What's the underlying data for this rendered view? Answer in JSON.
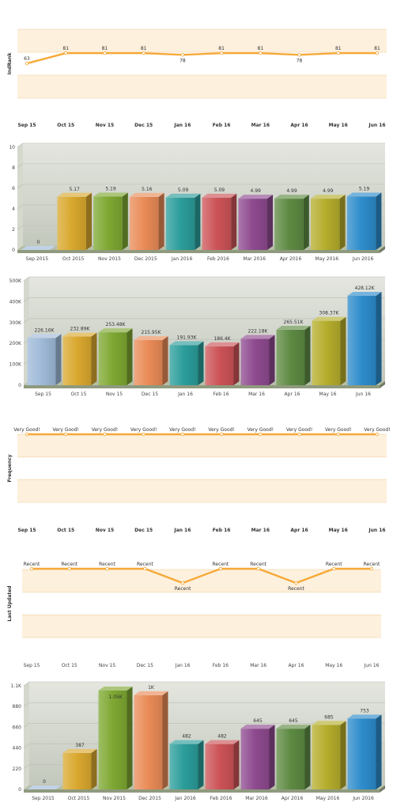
{
  "colors": {
    "band": "#fdf0dd",
    "band_line": "#f5dab4",
    "line": "#f6a938",
    "bar_bg_top": "#e4e6df",
    "bar_bg_bottom": "#c3c8bd",
    "floor": "#8f9a7e",
    "bar_palette": [
      "#9fbad8",
      "#d9a82e",
      "#7ea832",
      "#e98b57",
      "#2b9d9b",
      "#cc5357",
      "#8e4a8f",
      "#5d8a42",
      "#b5ad2c",
      "#2d8ccb"
    ]
  },
  "chart_data": [
    {
      "type": "line",
      "id": "indrank",
      "title": "",
      "ylabel": "IndRank",
      "categories": [
        "Sep 15",
        "Oct 15",
        "Nov 15",
        "Dec 15",
        "Jan 16",
        "Feb 16",
        "Mar 16",
        "Apr 16",
        "May 16",
        "Jun 16"
      ],
      "values": [
        63,
        81,
        81,
        81,
        78,
        81,
        81,
        78,
        81,
        81
      ],
      "point_labels": [
        "63",
        "81",
        "81",
        "81",
        "78",
        "81",
        "81",
        "78",
        "81",
        "81"
      ],
      "ylim": [
        30,
        120
      ]
    },
    {
      "type": "bar",
      "id": "score",
      "categories": [
        "Sep 2015",
        "Oct 2015",
        "Nov 2015",
        "Dec 2015",
        "Jan 2016",
        "Feb 2016",
        "Mar 2016",
        "Apr 2016",
        "May 2016",
        "Jun 2016"
      ],
      "values": [
        0,
        5.17,
        5.19,
        5.16,
        5.09,
        5.09,
        4.99,
        4.99,
        4.99,
        5.19
      ],
      "value_labels": [
        "0",
        "5.17",
        "5.19",
        "5.16",
        "5.09",
        "5.09",
        "4.99",
        "4.99",
        "4.99",
        "5.19"
      ],
      "ylim": [
        0,
        10
      ],
      "yticks": [
        "0",
        "2",
        "4",
        "6",
        "8",
        "10"
      ]
    },
    {
      "type": "bar",
      "id": "traffic",
      "categories": [
        "Sep 15",
        "Oct 15",
        "Nov 15",
        "Dec 15",
        "Jan 16",
        "Feb 16",
        "Mar 16",
        "Apr 16",
        "May 16",
        "Jun 16"
      ],
      "values": [
        226160,
        232890,
        253480,
        215950,
        191930,
        186400,
        222180,
        265510,
        308370,
        428120
      ],
      "value_labels": [
        "226.16K",
        "232.89K",
        "253.48K",
        "215.95K",
        "191.93K",
        "186.4K",
        "222.18K",
        "265.51K",
        "308.37K",
        "428.12K"
      ],
      "ylim": [
        0,
        500000
      ],
      "yticks": [
        "0",
        "100K",
        "200K",
        "300K",
        "400K",
        "500K"
      ]
    },
    {
      "type": "line",
      "id": "frequency",
      "ylabel": "Frequency",
      "categories": [
        "Sep 15",
        "Oct 15",
        "Nov 15",
        "Dec 15",
        "Jan 16",
        "Feb 16",
        "Mar 16",
        "Apr 16",
        "May 16",
        "Jun 16"
      ],
      "values": [
        1,
        1,
        1,
        1,
        1,
        1,
        1,
        1,
        1,
        1
      ],
      "point_labels": [
        "Very Good!",
        "Very Good!",
        "Very Good!",
        "Very Good!",
        "Very Good!",
        "Very Good!",
        "Very Good!",
        "Very Good!",
        "Very Good!",
        "Very Good!"
      ],
      "ylim": [
        0,
        1
      ]
    },
    {
      "type": "line",
      "id": "last-updated",
      "ylabel": "Last Updated",
      "categories": [
        "Sep 15",
        "Oct 15",
        "Nov 15",
        "Dec 15",
        "Jan 16",
        "Feb 16",
        "Mar 16",
        "Apr 16",
        "May 16",
        "Jun 16"
      ],
      "values": [
        1,
        1,
        1,
        1,
        0.6,
        1,
        1,
        0.6,
        1,
        1
      ],
      "point_labels": [
        "Recent",
        "Recent",
        "Recent",
        "Recent",
        "Recent",
        "Recent",
        "Recent",
        "Recent",
        "Recent",
        "Recent"
      ],
      "ylim": [
        0,
        1
      ]
    },
    {
      "type": "bar",
      "id": "count",
      "categories": [
        "Sep 2015",
        "Oct 2015",
        "Nov 2015",
        "Dec 2015",
        "Jan 2016",
        "Feb 2016",
        "Mar 2016",
        "Apr 2016",
        "May 2016",
        "Jun 2016"
      ],
      "values": [
        0,
        387,
        1050,
        1000,
        482,
        482,
        645,
        645,
        685,
        753
      ],
      "value_labels": [
        "0",
        "387",
        "1.05K",
        "1K",
        "482",
        "482",
        "645",
        "645",
        "685",
        "753"
      ],
      "ylim": [
        0,
        1100
      ],
      "yticks": [
        "0",
        "220",
        "440",
        "660",
        "880",
        "1.1K"
      ]
    }
  ]
}
